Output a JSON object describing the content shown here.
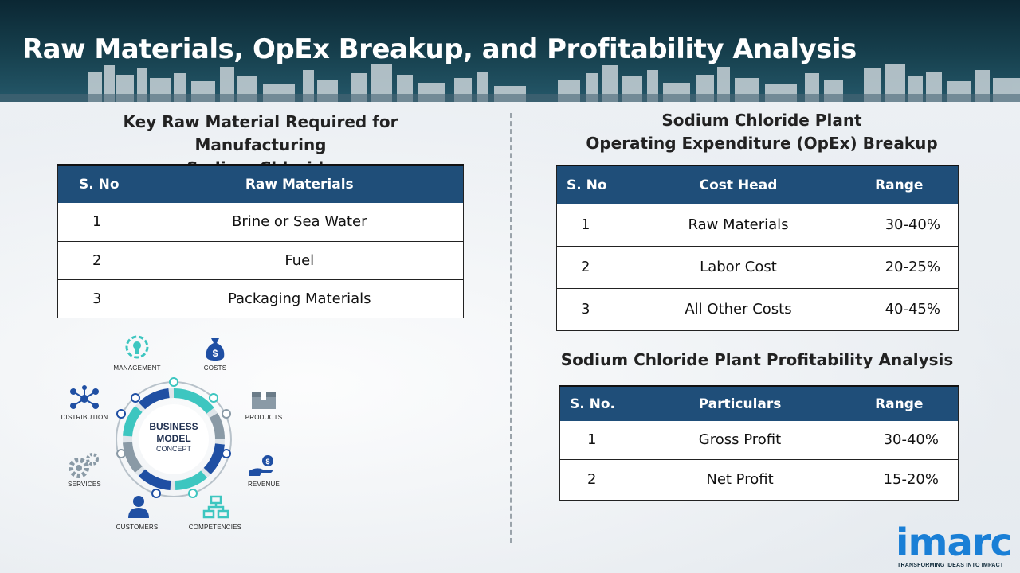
{
  "title": "Raw Materials, OpEx Breakup, and Profitability Analysis",
  "raw_materials": {
    "heading_line1": "Key Raw Material Required for Manufacturing",
    "heading_line2": "Sodium Chloride",
    "col_sno": "S. No",
    "col_name": "Raw Materials",
    "rows": [
      {
        "sno": "1",
        "name": "Brine or Sea Water"
      },
      {
        "sno": "2",
        "name": "Fuel"
      },
      {
        "sno": "3",
        "name": "Packaging Materials"
      }
    ]
  },
  "opex": {
    "heading_line1": "Sodium Chloride Plant",
    "heading_line2": "Operating Expenditure (OpEx) Breakup",
    "col_sno": "S. No",
    "col_head": "Cost Head",
    "col_range": "Range",
    "rows": [
      {
        "sno": "1",
        "head": "Raw Materials",
        "range": "30-40%"
      },
      {
        "sno": "2",
        "head": "Labor Cost",
        "range": "20-25%"
      },
      {
        "sno": "3",
        "head": "All Other Costs",
        "range": "40-45%"
      }
    ]
  },
  "profitability": {
    "heading": "Sodium Chloride Plant Profitability Analysis",
    "col_sno": "S. No.",
    "col_part": "Particulars",
    "col_range": "Range",
    "rows": [
      {
        "sno": "1",
        "part": "Gross Profit",
        "range": "30-40%"
      },
      {
        "sno": "2",
        "part": "Net Profit",
        "range": "15-20%"
      }
    ]
  },
  "diagram": {
    "center_line1": "BUSINESS",
    "center_line2": "MODEL",
    "center_line3": "CONCEPT",
    "labels": {
      "management": "MANAGEMENT",
      "costs": "COSTS",
      "products": "PRODUCTS",
      "revenue": "REVENUE",
      "competencies": "COMPETENCIES",
      "customers": "CUSTOMERS",
      "services": "SERVICES",
      "distribution": "DISTRIBUTION"
    },
    "colors": {
      "dark_blue": "#1f4fa3",
      "teal": "#3dc6c0",
      "gray": "#8a9aa6"
    }
  },
  "logo": {
    "word": "imarc",
    "tagline": "TRANSFORMING IDEAS INTO IMPACT",
    "color": "#1a7fd6"
  }
}
